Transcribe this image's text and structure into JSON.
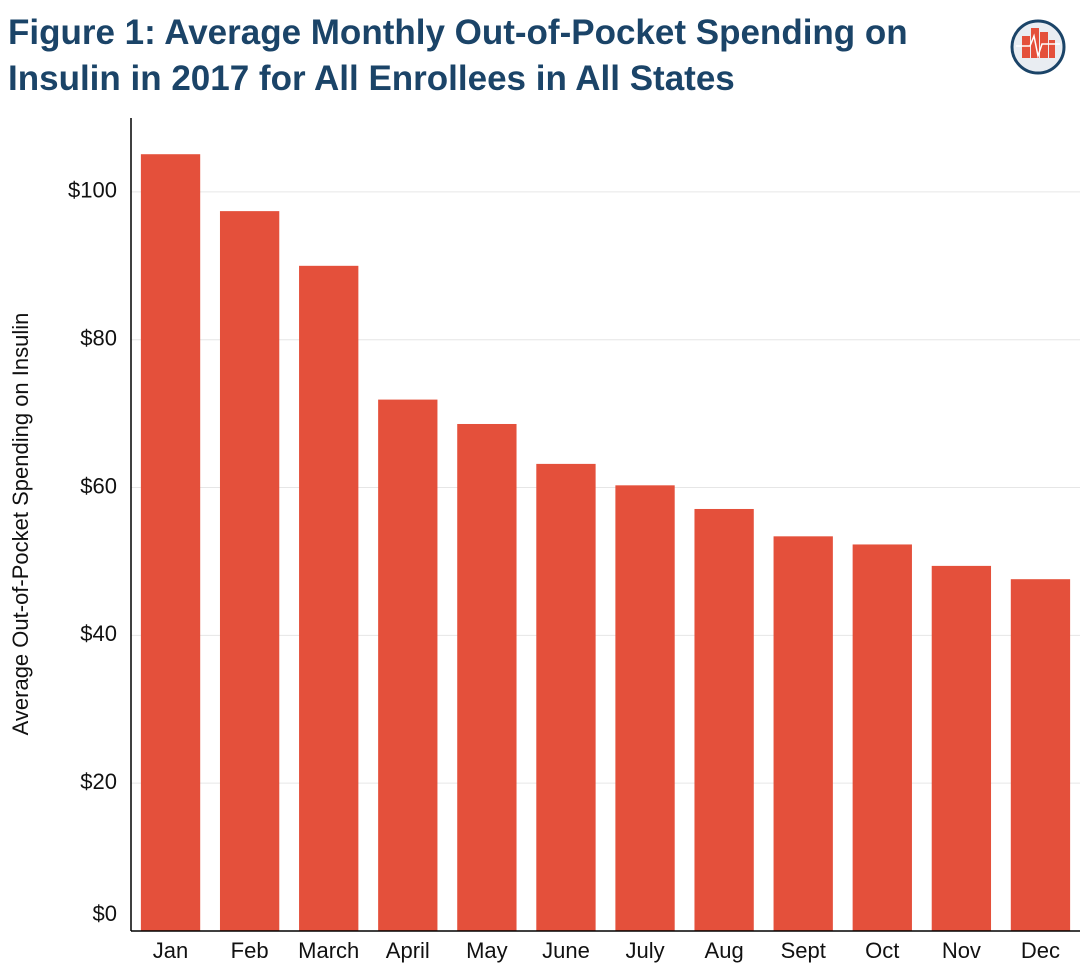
{
  "chart_data": {
    "type": "bar",
    "title": "Figure 1: Average Monthly Out-of-Pocket Spending on Insulin in 2017 for All Enrollees in All States",
    "y_label": "Average Out-of-Pocket Spending on Insulin",
    "categories": [
      "Jan",
      "Feb",
      "March",
      "April",
      "May",
      "June",
      "July",
      "Aug",
      "Sept",
      "Oct",
      "Nov",
      "Dec"
    ],
    "values": [
      105.1,
      97.4,
      90.0,
      71.9,
      68.6,
      63.2,
      60.3,
      57.1,
      53.4,
      52.3,
      49.4,
      47.6
    ],
    "color": "#e4503b",
    "ylim": [
      0,
      110
    ],
    "yticks": [
      {
        "value": 0,
        "label": "$0"
      },
      {
        "value": 20,
        "label": "$20"
      },
      {
        "value": 40,
        "label": "$40"
      },
      {
        "value": 60,
        "label": "$60"
      },
      {
        "value": 80,
        "label": "$80"
      },
      {
        "value": 100,
        "label": "$100"
      }
    ],
    "grid": true
  }
}
